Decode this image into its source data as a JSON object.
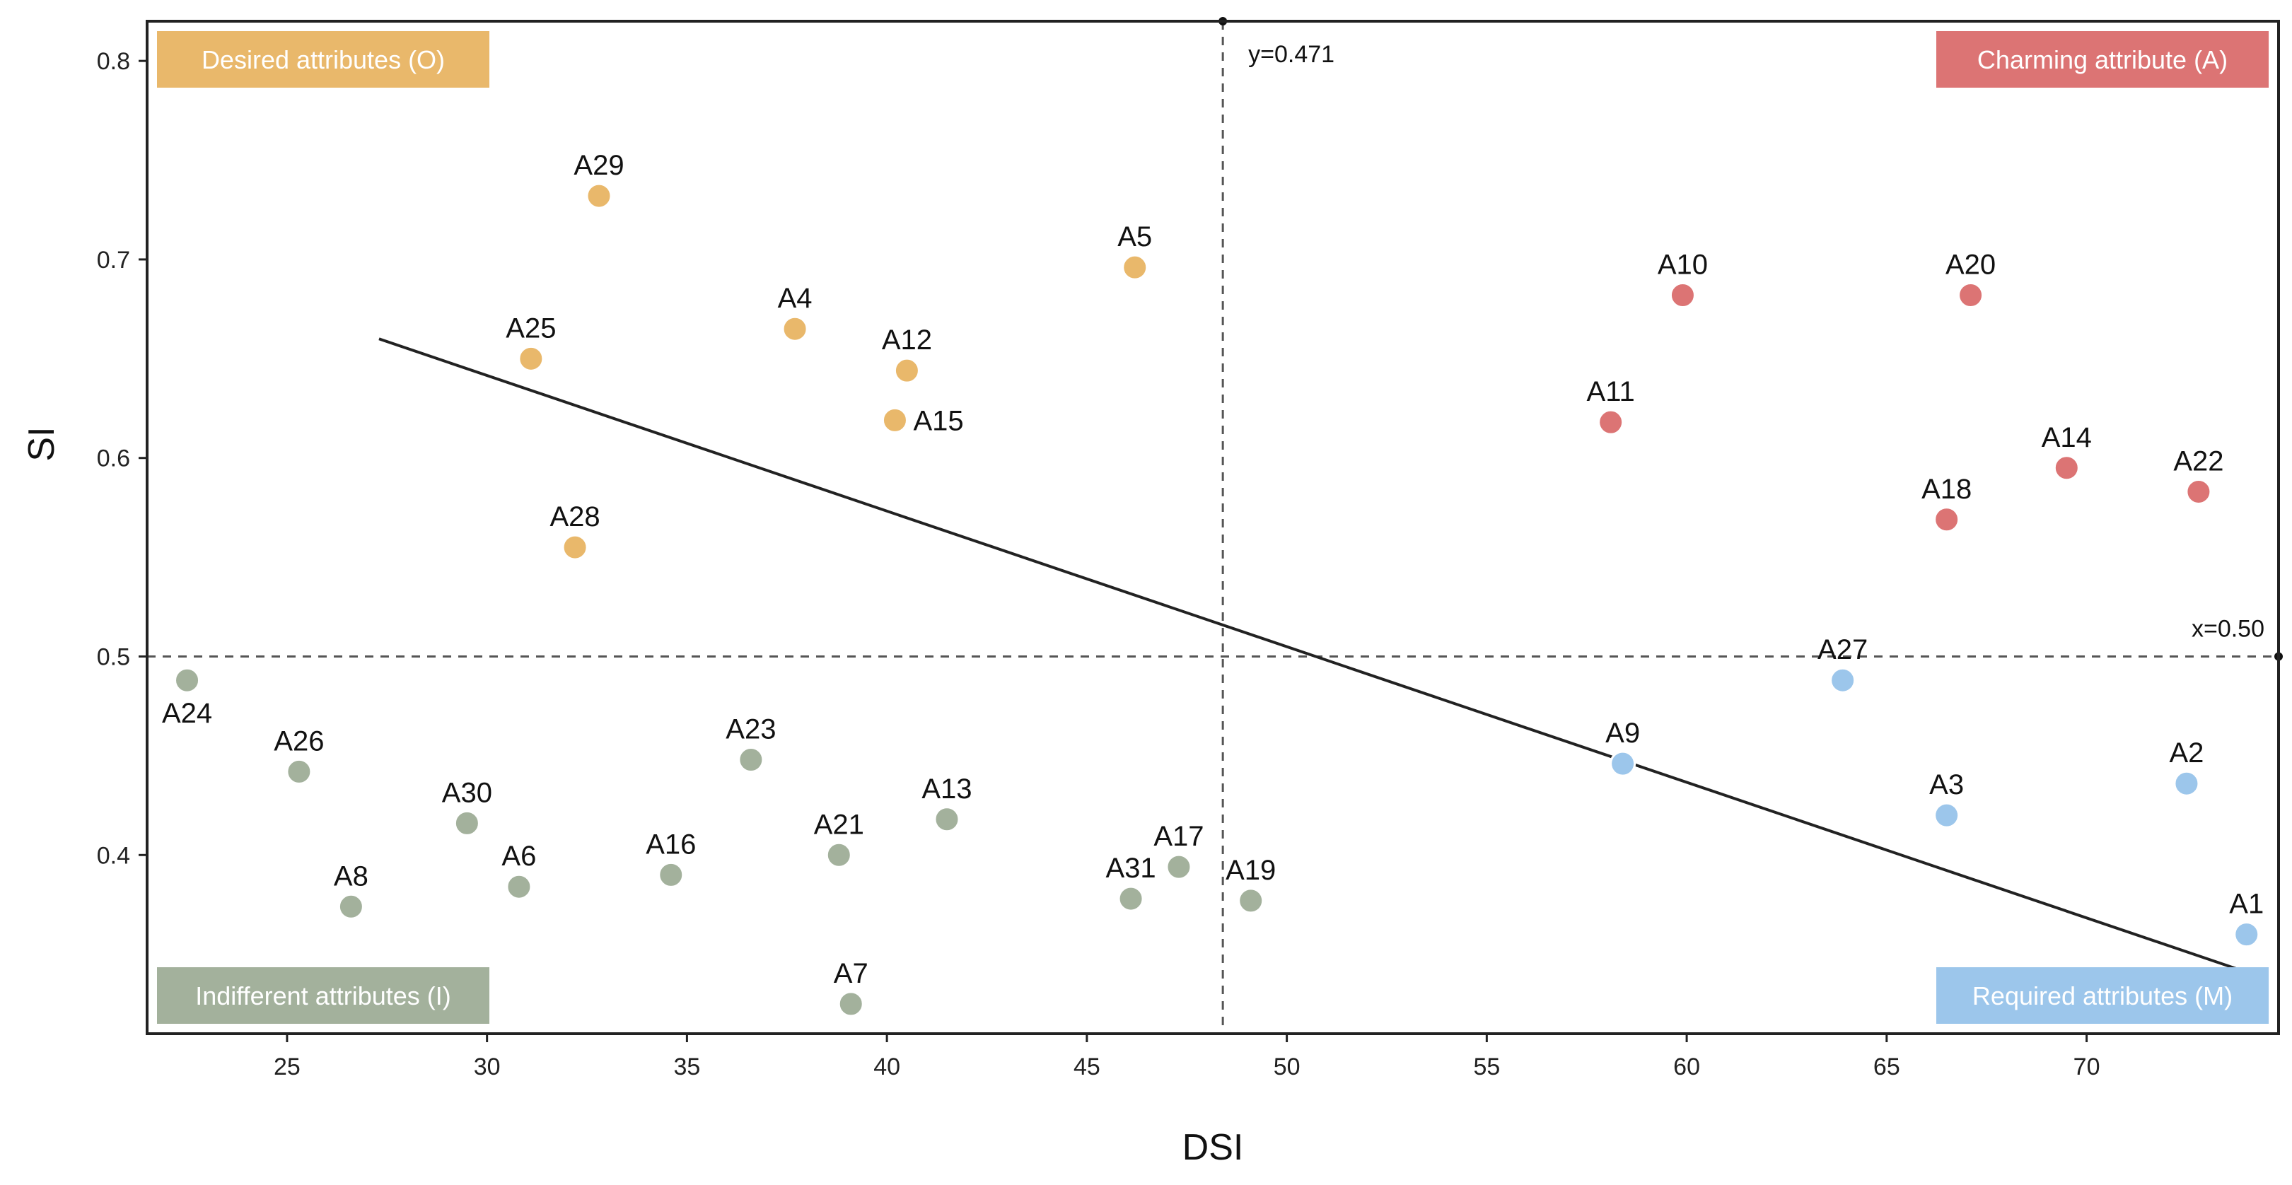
{
  "chart_data": {
    "type": "scatter",
    "title": "",
    "xlabel": "DSI",
    "ylabel": "SI",
    "xlim": [
      21.5,
      74.8
    ],
    "ylim": [
      0.31,
      0.82
    ],
    "x_ticks": [
      {
        "value": 25,
        "label": "25"
      },
      {
        "value": 30,
        "label": "30"
      },
      {
        "value": 35,
        "label": "35"
      },
      {
        "value": 40,
        "label": "40"
      },
      {
        "value": 45,
        "label": "45"
      },
      {
        "value": 50,
        "label": "50"
      },
      {
        "value": 55,
        "label": "55"
      },
      {
        "value": 60,
        "label": "60"
      },
      {
        "value": 65,
        "label": "65"
      },
      {
        "value": 70,
        "label": "70"
      }
    ],
    "y_ticks": [
      {
        "value": 0.4,
        "label": "0.4"
      },
      {
        "value": 0.5,
        "label": "0.5"
      },
      {
        "value": 0.6,
        "label": "0.6"
      },
      {
        "value": 0.7,
        "label": "0.7"
      },
      {
        "value": 0.8,
        "label": "0.8"
      }
    ],
    "reference_lines": [
      {
        "orientation": "vertical",
        "value": 48.4,
        "label": "y=0.471"
      },
      {
        "orientation": "horizontal",
        "value": 0.5,
        "label": "x=0.50"
      }
    ],
    "trend_line": {
      "x": [
        27.3,
        74.0
      ],
      "y": [
        0.66,
        0.341
      ]
    },
    "categories": [
      {
        "key": "O",
        "name": "Desired attributes (O)",
        "color": "#E9B86B",
        "position": "top-left"
      },
      {
        "key": "A",
        "name": "Charming attribute (A)",
        "color": "#DC7474",
        "position": "top-right"
      },
      {
        "key": "I",
        "name": "Indifferent attributes (I)",
        "color": "#A3B19C",
        "position": "bottom-left"
      },
      {
        "key": "M",
        "name": "Required attributes (M)",
        "color": "#9CC6EB",
        "position": "bottom-right"
      }
    ],
    "points": [
      {
        "label": "A29",
        "x": 32.8,
        "y": 0.732,
        "cat": "O",
        "label_pos": "above"
      },
      {
        "label": "A5",
        "x": 46.2,
        "y": 0.696,
        "cat": "O",
        "label_pos": "above"
      },
      {
        "label": "A4",
        "x": 37.7,
        "y": 0.665,
        "cat": "O",
        "label_pos": "above"
      },
      {
        "label": "A25",
        "x": 31.1,
        "y": 0.65,
        "cat": "O",
        "label_pos": "above"
      },
      {
        "label": "A12",
        "x": 40.5,
        "y": 0.644,
        "cat": "O",
        "label_pos": "above"
      },
      {
        "label": "A15",
        "x": 40.2,
        "y": 0.619,
        "cat": "O",
        "label_pos": "right"
      },
      {
        "label": "A28",
        "x": 32.2,
        "y": 0.555,
        "cat": "O",
        "label_pos": "above"
      },
      {
        "label": "A10",
        "x": 59.9,
        "y": 0.682,
        "cat": "A",
        "label_pos": "above"
      },
      {
        "label": "A20",
        "x": 67.1,
        "y": 0.682,
        "cat": "A",
        "label_pos": "above"
      },
      {
        "label": "A11",
        "x": 58.1,
        "y": 0.618,
        "cat": "A",
        "label_pos": "above"
      },
      {
        "label": "A14",
        "x": 69.5,
        "y": 0.595,
        "cat": "A",
        "label_pos": "above"
      },
      {
        "label": "A22",
        "x": 72.8,
        "y": 0.583,
        "cat": "A",
        "label_pos": "above"
      },
      {
        "label": "A18",
        "x": 66.5,
        "y": 0.569,
        "cat": "A",
        "label_pos": "above"
      },
      {
        "label": "A27",
        "x": 63.9,
        "y": 0.488,
        "cat": "M",
        "label_pos": "above"
      },
      {
        "label": "A9",
        "x": 58.4,
        "y": 0.446,
        "cat": "M",
        "label_pos": "above"
      },
      {
        "label": "A2",
        "x": 72.5,
        "y": 0.436,
        "cat": "M",
        "label_pos": "above"
      },
      {
        "label": "A3",
        "x": 66.5,
        "y": 0.42,
        "cat": "M",
        "label_pos": "above"
      },
      {
        "label": "A1",
        "x": 74.0,
        "y": 0.36,
        "cat": "M",
        "label_pos": "above"
      },
      {
        "label": "A24",
        "x": 22.5,
        "y": 0.488,
        "cat": "I",
        "label_pos": "below"
      },
      {
        "label": "A26",
        "x": 25.3,
        "y": 0.442,
        "cat": "I",
        "label_pos": "above"
      },
      {
        "label": "A23",
        "x": 36.6,
        "y": 0.448,
        "cat": "I",
        "label_pos": "above"
      },
      {
        "label": "A13",
        "x": 41.5,
        "y": 0.418,
        "cat": "I",
        "label_pos": "above"
      },
      {
        "label": "A30",
        "x": 29.5,
        "y": 0.416,
        "cat": "I",
        "label_pos": "above"
      },
      {
        "label": "A21",
        "x": 38.8,
        "y": 0.4,
        "cat": "I",
        "label_pos": "above"
      },
      {
        "label": "A17",
        "x": 47.3,
        "y": 0.394,
        "cat": "I",
        "label_pos": "above"
      },
      {
        "label": "A16",
        "x": 34.6,
        "y": 0.39,
        "cat": "I",
        "label_pos": "above"
      },
      {
        "label": "A6",
        "x": 30.8,
        "y": 0.384,
        "cat": "I",
        "label_pos": "above"
      },
      {
        "label": "A31",
        "x": 46.1,
        "y": 0.378,
        "cat": "I",
        "label_pos": "above"
      },
      {
        "label": "A19",
        "x": 49.1,
        "y": 0.377,
        "cat": "I",
        "label_pos": "above"
      },
      {
        "label": "A8",
        "x": 26.6,
        "y": 0.374,
        "cat": "I",
        "label_pos": "above"
      },
      {
        "label": "A7",
        "x": 39.1,
        "y": 0.325,
        "cat": "I",
        "label_pos": "above"
      }
    ]
  }
}
